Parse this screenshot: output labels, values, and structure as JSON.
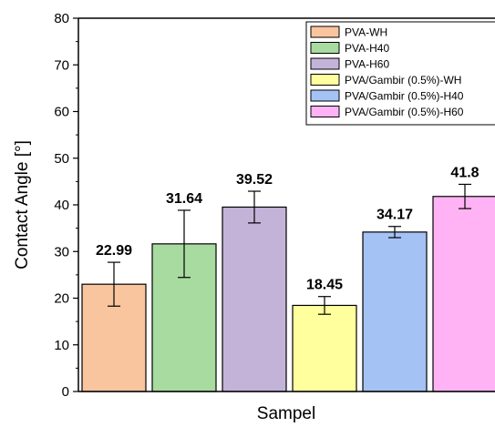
{
  "chart_data": {
    "type": "bar",
    "title": "",
    "xlabel": "Sampel",
    "ylabel": "Contact Angle [°]",
    "ylim": [
      0,
      80
    ],
    "yticks": [
      0,
      10,
      20,
      30,
      40,
      50,
      60,
      70,
      80
    ],
    "categories": [
      "PVA-WH",
      "PVA-H40",
      "PVA-H60",
      "PVA/Gambir (0.5%)-WH",
      "PVA/Gambir (0.5%)-H40",
      "PVA/Gambir (0.5%)-H60"
    ],
    "values": [
      22.99,
      31.64,
      39.52,
      18.45,
      34.17,
      41.8
    ],
    "value_labels": [
      "22.99",
      "31.64",
      "39.52",
      "18.45",
      "34.17",
      "41.8"
    ],
    "errors": [
      4.7,
      7.2,
      3.4,
      1.9,
      1.2,
      2.6
    ],
    "colors": [
      "#f9c59f",
      "#a8dba0",
      "#c4b3d9",
      "#ffff9e",
      "#a4c2f4",
      "#ffb3f5"
    ],
    "legend": {
      "position": "top-right",
      "entries": [
        "PVA-WH",
        "PVA-H40",
        "PVA-H60",
        "PVA/Gambir (0.5%)-WH",
        "PVA/Gambir (0.5%)-H40",
        "PVA/Gambir (0.5%)-H60"
      ]
    },
    "grid": false
  }
}
